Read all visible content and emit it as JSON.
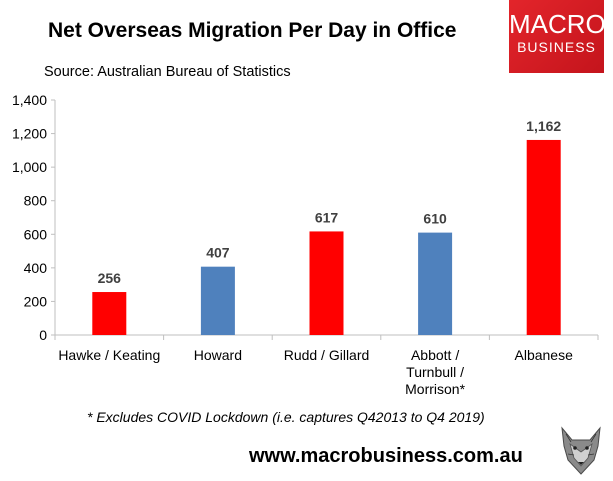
{
  "header": {
    "title": "Net Overseas Migration Per Day in Office",
    "source": "Source: Australian Bureau of Statistics"
  },
  "logo": {
    "line1": "MACRO",
    "line2": "BUSINESS"
  },
  "footer": {
    "footnote": "* Excludes COVID Lockdown (i.e. captures Q42013 to Q4 2019)",
    "url": "www.macrobusiness.com.au"
  },
  "colors": {
    "red": "#ff0000",
    "blue": "#4f81bd",
    "axis": "#bfbfbf"
  },
  "chart_data": {
    "type": "bar",
    "title": "Net Overseas Migration Per Day in Office",
    "xlabel": "",
    "ylabel": "",
    "ylim": [
      0,
      1400
    ],
    "yticks": [
      0,
      200,
      400,
      600,
      800,
      1000,
      1200,
      1400
    ],
    "ytick_labels": [
      "0",
      "200",
      "400",
      "600",
      "800",
      "1,000",
      "1,200",
      "1,400"
    ],
    "grid": false,
    "categories": [
      [
        "Hawke / Keating"
      ],
      [
        "Howard"
      ],
      [
        "Rudd / Gillard"
      ],
      [
        "Abbott /",
        "Turnbull /",
        "Morrison*"
      ],
      [
        "Albanese"
      ]
    ],
    "values": [
      256,
      407,
      617,
      610,
      1162
    ],
    "data_labels": [
      "256",
      "407",
      "617",
      "610",
      "1,162"
    ],
    "bar_colors": [
      "#ff0000",
      "#4f81bd",
      "#ff0000",
      "#4f81bd",
      "#ff0000"
    ]
  }
}
